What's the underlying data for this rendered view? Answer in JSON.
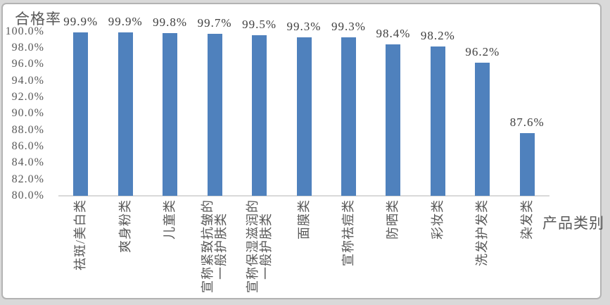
{
  "page": {
    "background_color": "#d9d9d9",
    "frame_border_color": "#b3b3b3",
    "frame_background": "#ffffff"
  },
  "chart_data": {
    "type": "bar",
    "title": "",
    "ylabel": "合格率",
    "xlabel": "产品类别",
    "categories": [
      "祛斑/美白类",
      "爽身粉类",
      "儿童类",
      "宣称紧致抗皱的\n一般护肤类",
      "宣称保湿滋润的\n一般护肤类",
      "面膜类",
      "宣称祛痘类",
      "防晒类",
      "彩妆类",
      "洗发护发类",
      "染发类"
    ],
    "values": [
      99.9,
      99.9,
      99.8,
      99.7,
      99.5,
      99.3,
      99.3,
      98.4,
      98.2,
      96.2,
      87.6
    ],
    "data_labels": [
      "99.9%",
      "99.9%",
      "99.8%",
      "99.7%",
      "99.5%",
      "99.3%",
      "99.3%",
      "98.4%",
      "98.2%",
      "96.2%",
      "87.6%"
    ],
    "ylim": [
      80,
      100
    ],
    "ytick_step": 2,
    "ytick_labels": [
      "100.0%",
      "98.0%",
      "96.0%",
      "94.0%",
      "92.0%",
      "90.0%",
      "88.0%",
      "86.0%",
      "84.0%",
      "82.0%",
      "80.0%"
    ],
    "bar_color": "#4f81bd",
    "axis_line_color": "#d9d9d9",
    "grid": false,
    "legend": false,
    "data_labels_shown": true
  }
}
